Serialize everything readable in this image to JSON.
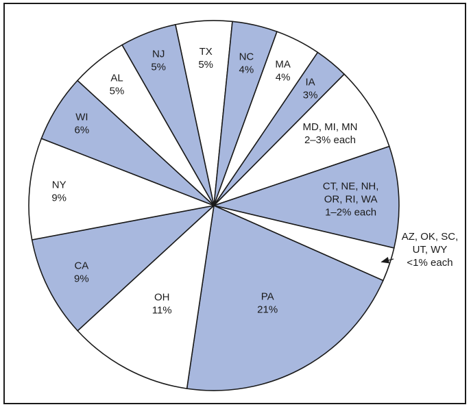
{
  "chart_data": {
    "type": "pie",
    "fill_colors": {
      "blue": "#a8b8de",
      "white": "#ffffff"
    },
    "stroke_color": "#1a1a1a",
    "slices": [
      {
        "label": [
          "TX",
          "5%"
        ],
        "value": 5,
        "fill": "white"
      },
      {
        "label": [
          "NC",
          "4%"
        ],
        "value": 4,
        "fill": "blue"
      },
      {
        "label": [
          "MA",
          "4%"
        ],
        "value": 4,
        "fill": "white"
      },
      {
        "label": [
          "IA",
          "3%"
        ],
        "value": 3,
        "fill": "blue"
      },
      {
        "label": [
          "MD, MI, MN",
          "2–3% each"
        ],
        "value": 7.5,
        "fill": "white"
      },
      {
        "label": [
          "CT, NE, NH,",
          "OR, RI, WA",
          "1–2% each"
        ],
        "value": 9,
        "fill": "blue"
      },
      {
        "label": [
          "AZ, OK, SC,",
          "UT, WY",
          "<1% each"
        ],
        "value": 3,
        "fill": "white",
        "callout": true
      },
      {
        "label": [
          "PA",
          "21%"
        ],
        "value": 21,
        "fill": "blue"
      },
      {
        "label": [
          "OH",
          "11%"
        ],
        "value": 11,
        "fill": "white"
      },
      {
        "label": [
          "CA",
          "9%"
        ],
        "value": 9,
        "fill": "blue"
      },
      {
        "label": [
          "NY",
          "9%"
        ],
        "value": 9,
        "fill": "white"
      },
      {
        "label": [
          "WI",
          "6%"
        ],
        "value": 6,
        "fill": "blue"
      },
      {
        "label": [
          "AL",
          "5%"
        ],
        "value": 5,
        "fill": "white"
      },
      {
        "label": [
          "NJ",
          "5%"
        ],
        "value": 5,
        "fill": "blue"
      }
    ]
  }
}
